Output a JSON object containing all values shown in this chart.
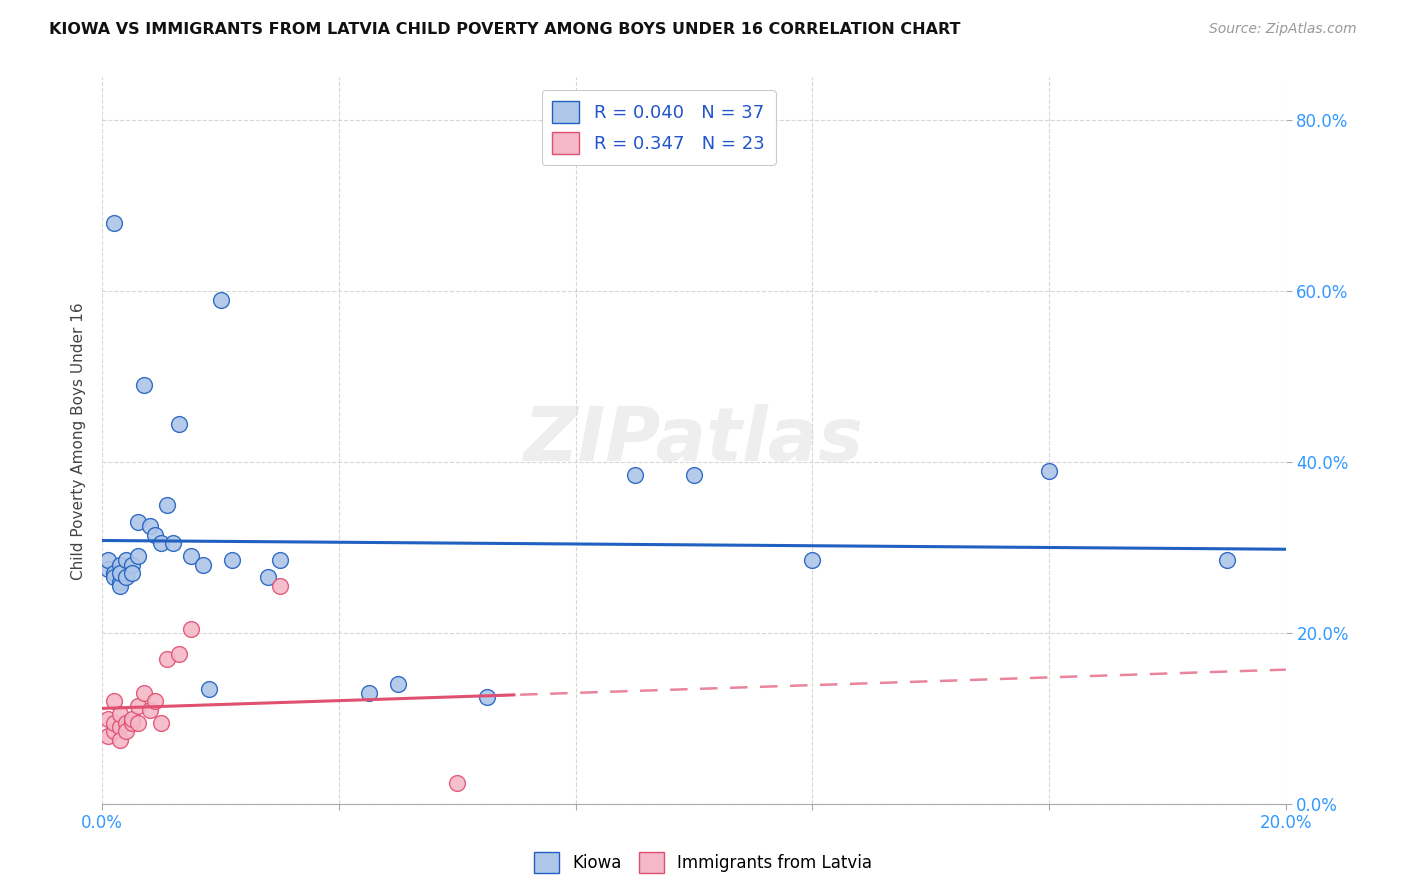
{
  "title": "KIOWA VS IMMIGRANTS FROM LATVIA CHILD POVERTY AMONG BOYS UNDER 16 CORRELATION CHART",
  "source": "Source: ZipAtlas.com",
  "ylabel": "Child Poverty Among Boys Under 16",
  "xlim": [
    0.0,
    0.2
  ],
  "ylim": [
    0.0,
    0.85
  ],
  "ytick_vals": [
    0.0,
    0.2,
    0.4,
    0.6,
    0.8
  ],
  "ytick_labels": [
    "0.0%",
    "20.0%",
    "40.0%",
    "60.0%",
    "80.0%"
  ],
  "xtick_vals": [
    0.0,
    0.04,
    0.08,
    0.12,
    0.16,
    0.2
  ],
  "xtick_labels": [
    "0.0%",
    "",
    "",
    "",
    "",
    "20.0%"
  ],
  "kiowa_R": "0.040",
  "kiowa_N": "37",
  "latvia_R": "0.347",
  "latvia_N": "23",
  "kiowa_color": "#aec6e8",
  "latvia_color": "#f4b8c8",
  "kiowa_line_color": "#2060c0",
  "latvia_line_color": "#e05070",
  "legend_r_color": "#2255cc",
  "background_color": "#ffffff",
  "kiowa_x": [
    0.001,
    0.001,
    0.002,
    0.002,
    0.002,
    0.003,
    0.003,
    0.003,
    0.003,
    0.004,
    0.004,
    0.005,
    0.005,
    0.006,
    0.006,
    0.007,
    0.008,
    0.009,
    0.01,
    0.011,
    0.012,
    0.013,
    0.015,
    0.017,
    0.018,
    0.02,
    0.022,
    0.028,
    0.03,
    0.045,
    0.05,
    0.065,
    0.09,
    0.1,
    0.12,
    0.16,
    0.19
  ],
  "kiowa_y": [
    0.275,
    0.285,
    0.27,
    0.265,
    0.68,
    0.28,
    0.26,
    0.255,
    0.27,
    0.285,
    0.265,
    0.28,
    0.27,
    0.29,
    0.33,
    0.49,
    0.325,
    0.315,
    0.305,
    0.35,
    0.305,
    0.445,
    0.29,
    0.28,
    0.135,
    0.59,
    0.285,
    0.265,
    0.285,
    0.13,
    0.14,
    0.125,
    0.385,
    0.385,
    0.285,
    0.39,
    0.285
  ],
  "latvia_x": [
    0.001,
    0.001,
    0.002,
    0.002,
    0.002,
    0.003,
    0.003,
    0.003,
    0.004,
    0.004,
    0.005,
    0.005,
    0.006,
    0.006,
    0.007,
    0.008,
    0.009,
    0.01,
    0.011,
    0.013,
    0.015,
    0.03,
    0.06
  ],
  "latvia_y": [
    0.08,
    0.1,
    0.085,
    0.095,
    0.12,
    0.09,
    0.105,
    0.075,
    0.095,
    0.085,
    0.095,
    0.1,
    0.115,
    0.095,
    0.13,
    0.11,
    0.12,
    0.095,
    0.17,
    0.175,
    0.205,
    0.255,
    0.025
  ]
}
